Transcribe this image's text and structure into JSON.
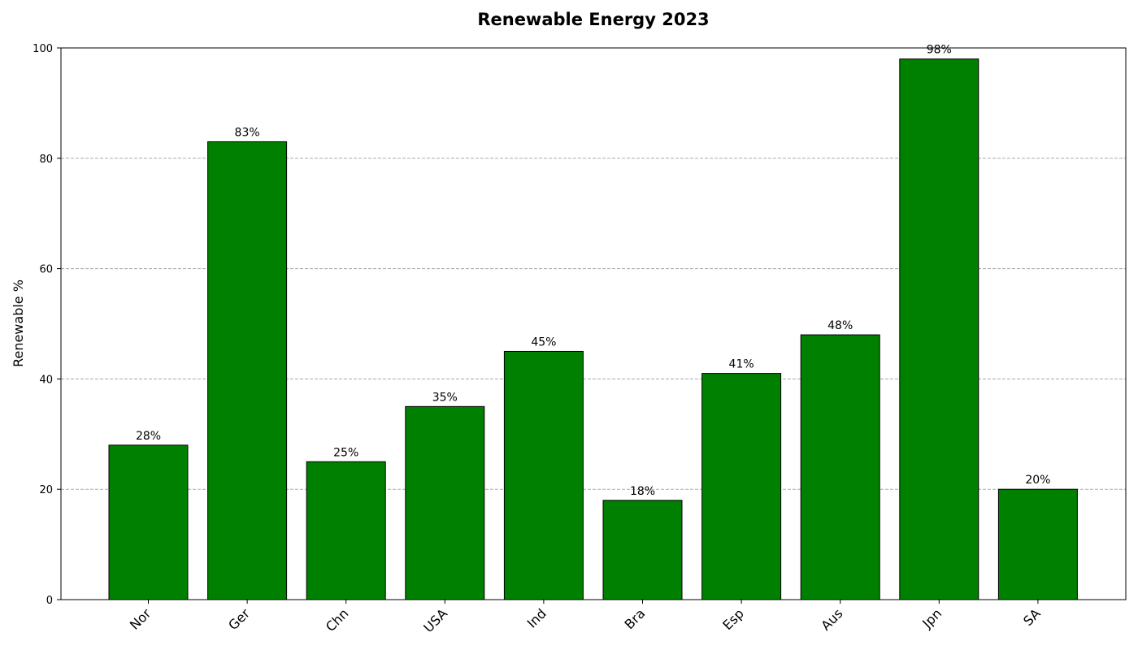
{
  "chart_data": {
    "type": "bar",
    "title": "Renewable Energy 2023",
    "xlabel": "",
    "ylabel": "Renewable %",
    "categories": [
      "Nor",
      "Ger",
      "Chn",
      "USA",
      "Ind",
      "Bra",
      "Esp",
      "Aus",
      "Jpn",
      "SA"
    ],
    "values": [
      28,
      83,
      25,
      35,
      45,
      18,
      41,
      48,
      98,
      20
    ],
    "data_labels": [
      "28%",
      "83%",
      "25%",
      "35%",
      "45%",
      "18%",
      "41%",
      "48%",
      "98%",
      "20%"
    ],
    "ylim": [
      0,
      100
    ],
    "yticks": [
      0,
      20,
      40,
      60,
      80,
      100
    ],
    "grid": "y-dashed",
    "legend": "none",
    "colors": {
      "bar": "#008000",
      "bar_edge": "#000000",
      "grid": "#aaaaaa"
    }
  }
}
